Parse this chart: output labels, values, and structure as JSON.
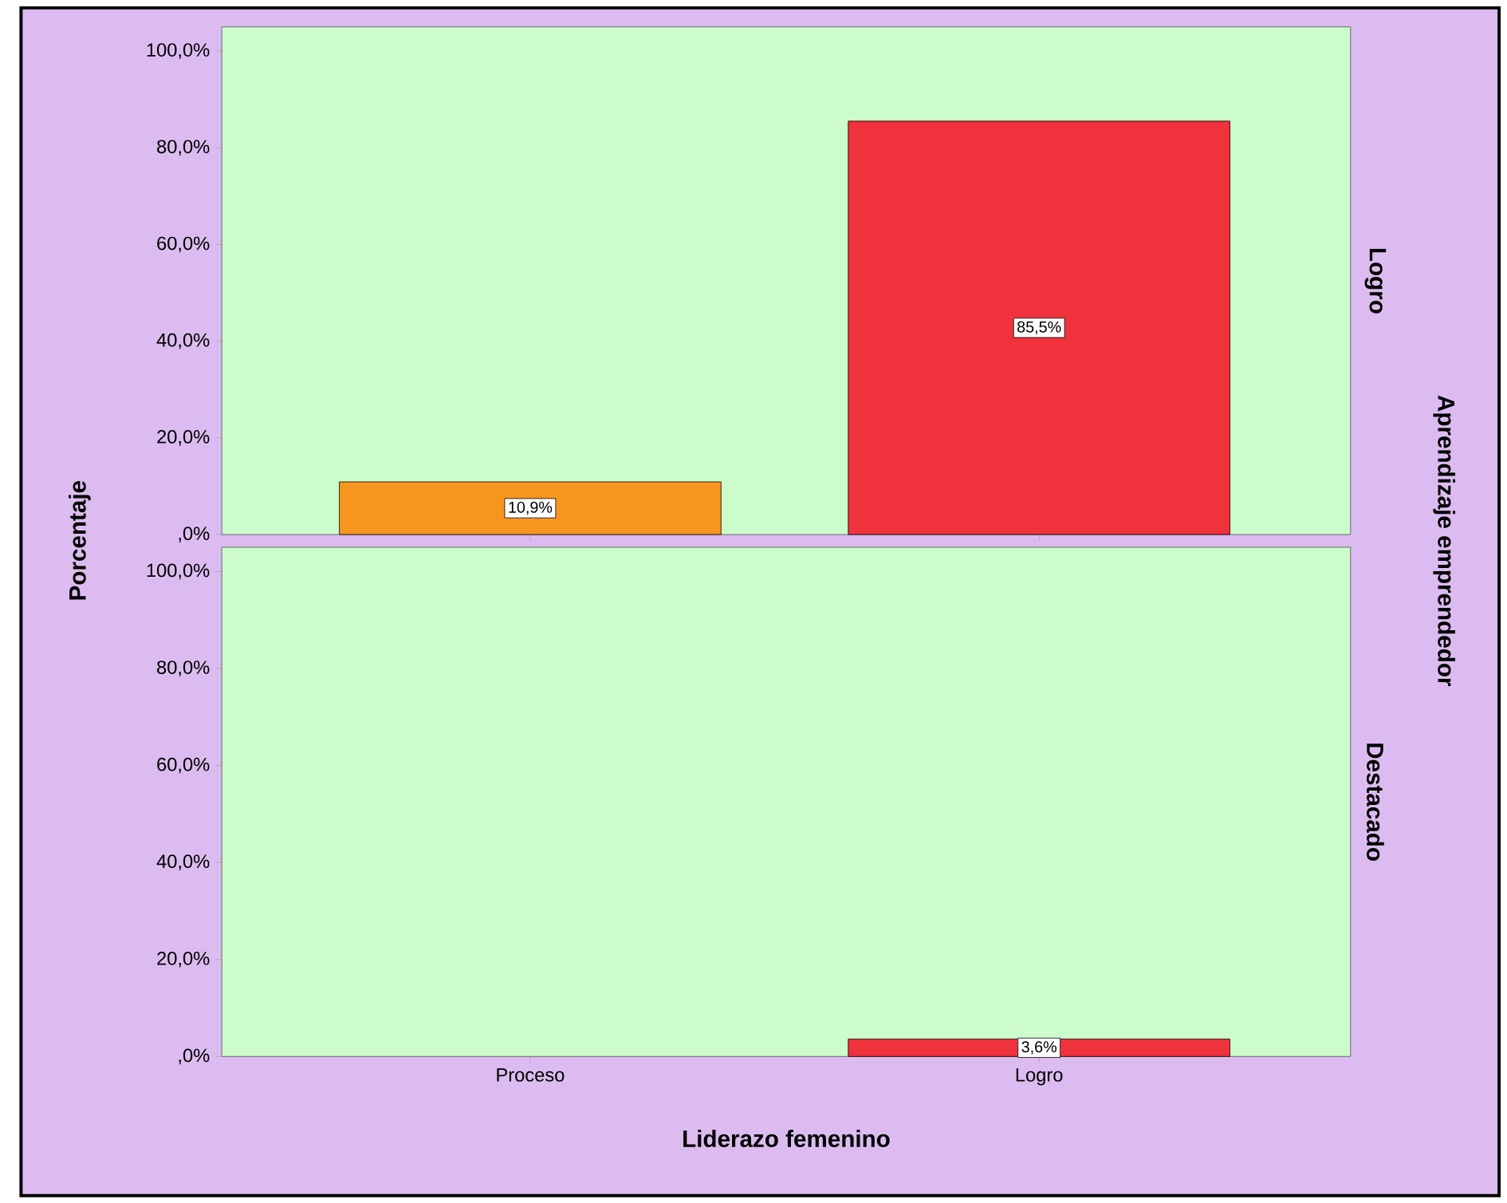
{
  "chart_data": [
    {
      "type": "bar",
      "ylabel": "Porcentaje",
      "y2label": "Logro",
      "annotations": [
        "Aprendizaje emprendedor"
      ],
      "categories": [
        null,
        null
      ],
      "values": [
        10.9,
        85.5
      ],
      "colors": [
        "#f7961e",
        "#f0323c"
      ],
      "value_labels": [
        "10,9%",
        "85,5%"
      ],
      "ylim": [
        0,
        105
      ],
      "yticks": [
        {
          "value": 0,
          "label": ",0%"
        },
        {
          "value": 20,
          "label": "20,0%"
        },
        {
          "value": 40,
          "label": "40,0%"
        },
        {
          "value": 60,
          "label": "60,0%"
        },
        {
          "value": 80,
          "label": "80,0%"
        },
        {
          "value": 100,
          "label": "100,0%"
        }
      ],
      "tick_labels": "y"
    },
    {
      "type": "bar",
      "xlabel": "Liderazo femenino",
      "y2label": "Destacado",
      "categories": [
        "Proceso",
        "Logro"
      ],
      "values": [
        null,
        3.6
      ],
      "colors": [
        "#f7961e",
        "#f0323c"
      ],
      "value_labels": [
        null,
        "3,6%"
      ],
      "ylim": [
        0,
        105
      ],
      "yticks": [
        {
          "value": 0,
          "label": ",0%"
        },
        {
          "value": 20,
          "label": "20,0%"
        },
        {
          "value": 40,
          "label": "40,0%"
        },
        {
          "value": 60,
          "label": "60,0%"
        },
        {
          "value": 80,
          "label": "80,0%"
        },
        {
          "value": 100,
          "label": "100,0%"
        }
      ]
    }
  ]
}
